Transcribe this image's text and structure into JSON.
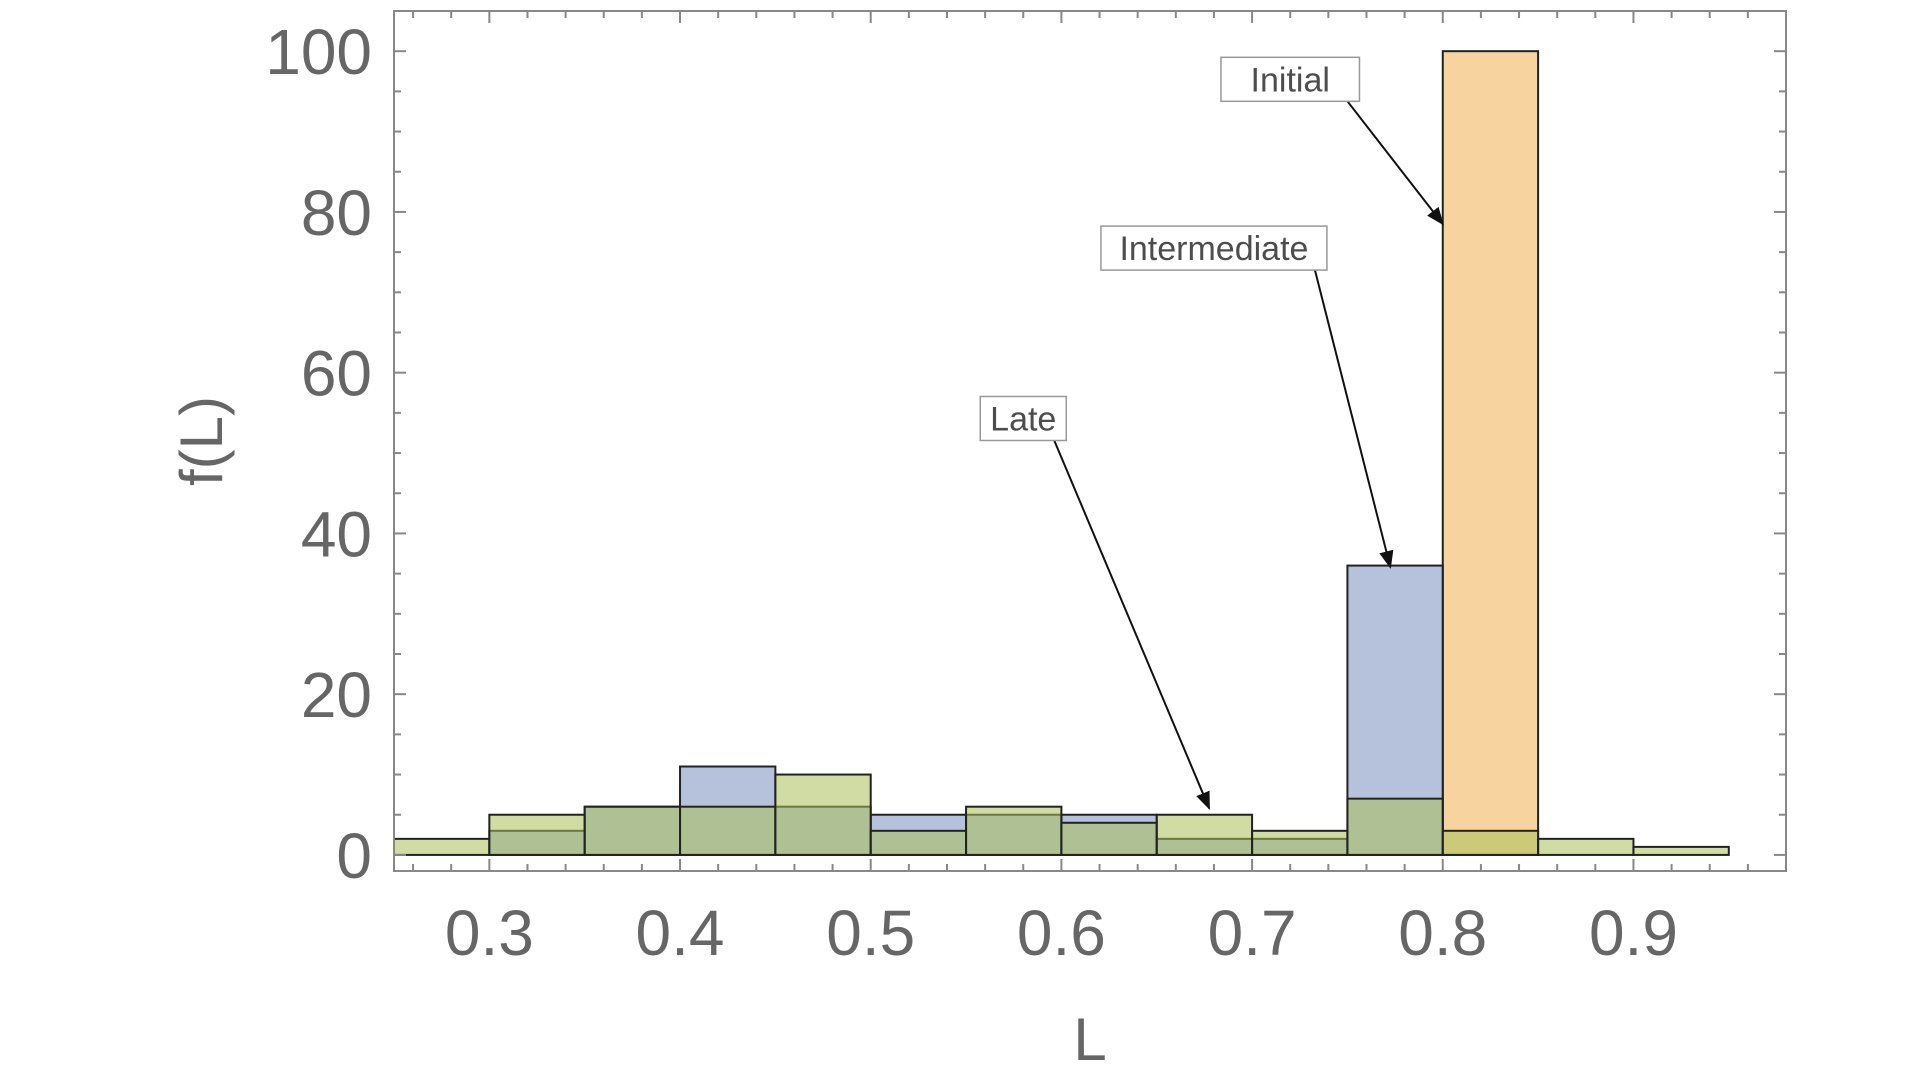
{
  "chart_data": {
    "type": "bar",
    "histogram": true,
    "xlabel": "L",
    "ylabel": "f(L)",
    "xlim": [
      0.25,
      0.98
    ],
    "ylim": [
      -2,
      105
    ],
    "x_ticks": [
      "0.3",
      "0.4",
      "0.5",
      "0.6",
      "0.7",
      "0.8",
      "0.9"
    ],
    "y_ticks": [
      "0",
      "20",
      "40",
      "60",
      "80",
      "100"
    ],
    "grid": false,
    "frame": true,
    "series": [
      {
        "name": "Initial",
        "color": "#f0b050",
        "bins": [
          {
            "x0": 0.8,
            "x1": 0.85,
            "value": 100
          }
        ]
      },
      {
        "name": "Intermediate",
        "color": "#7a90bf",
        "bins": [
          {
            "x0": 0.3,
            "x1": 0.35,
            "value": 3
          },
          {
            "x0": 0.35,
            "x1": 0.4,
            "value": 6
          },
          {
            "x0": 0.4,
            "x1": 0.45,
            "value": 11
          },
          {
            "x0": 0.45,
            "x1": 0.5,
            "value": 6
          },
          {
            "x0": 0.5,
            "x1": 0.55,
            "value": 5
          },
          {
            "x0": 0.55,
            "x1": 0.6,
            "value": 5
          },
          {
            "x0": 0.6,
            "x1": 0.65,
            "value": 5
          },
          {
            "x0": 0.65,
            "x1": 0.7,
            "value": 2
          },
          {
            "x0": 0.7,
            "x1": 0.75,
            "value": 2
          },
          {
            "x0": 0.75,
            "x1": 0.8,
            "value": 36
          }
        ]
      },
      {
        "name": "Late",
        "color": "#a9bf5a",
        "bins": [
          {
            "x0": 0.25,
            "x1": 0.3,
            "value": 2
          },
          {
            "x0": 0.3,
            "x1": 0.35,
            "value": 5
          },
          {
            "x0": 0.35,
            "x1": 0.4,
            "value": 6
          },
          {
            "x0": 0.4,
            "x1": 0.45,
            "value": 6
          },
          {
            "x0": 0.45,
            "x1": 0.5,
            "value": 10
          },
          {
            "x0": 0.5,
            "x1": 0.55,
            "value": 3
          },
          {
            "x0": 0.55,
            "x1": 0.6,
            "value": 6
          },
          {
            "x0": 0.6,
            "x1": 0.65,
            "value": 4
          },
          {
            "x0": 0.65,
            "x1": 0.7,
            "value": 5
          },
          {
            "x0": 0.7,
            "x1": 0.75,
            "value": 3
          },
          {
            "x0": 0.75,
            "x1": 0.8,
            "value": 7
          },
          {
            "x0": 0.8,
            "x1": 0.85,
            "value": 3
          },
          {
            "x0": 0.85,
            "x1": 0.9,
            "value": 2
          },
          {
            "x0": 0.9,
            "x1": 0.95,
            "value": 1
          }
        ]
      }
    ],
    "annotations": [
      {
        "text": "Initial",
        "label_at": [
          0.72,
          96.5
        ],
        "arrow_to": [
          0.8,
          78.5
        ]
      },
      {
        "text": "Intermediate",
        "label_at": [
          0.68,
          75.5
        ],
        "arrow_to": [
          0.7725,
          35.8
        ]
      },
      {
        "text": "Late",
        "label_at": [
          0.58,
          54.3
        ],
        "arrow_to": [
          0.6775,
          5.8
        ]
      }
    ]
  }
}
